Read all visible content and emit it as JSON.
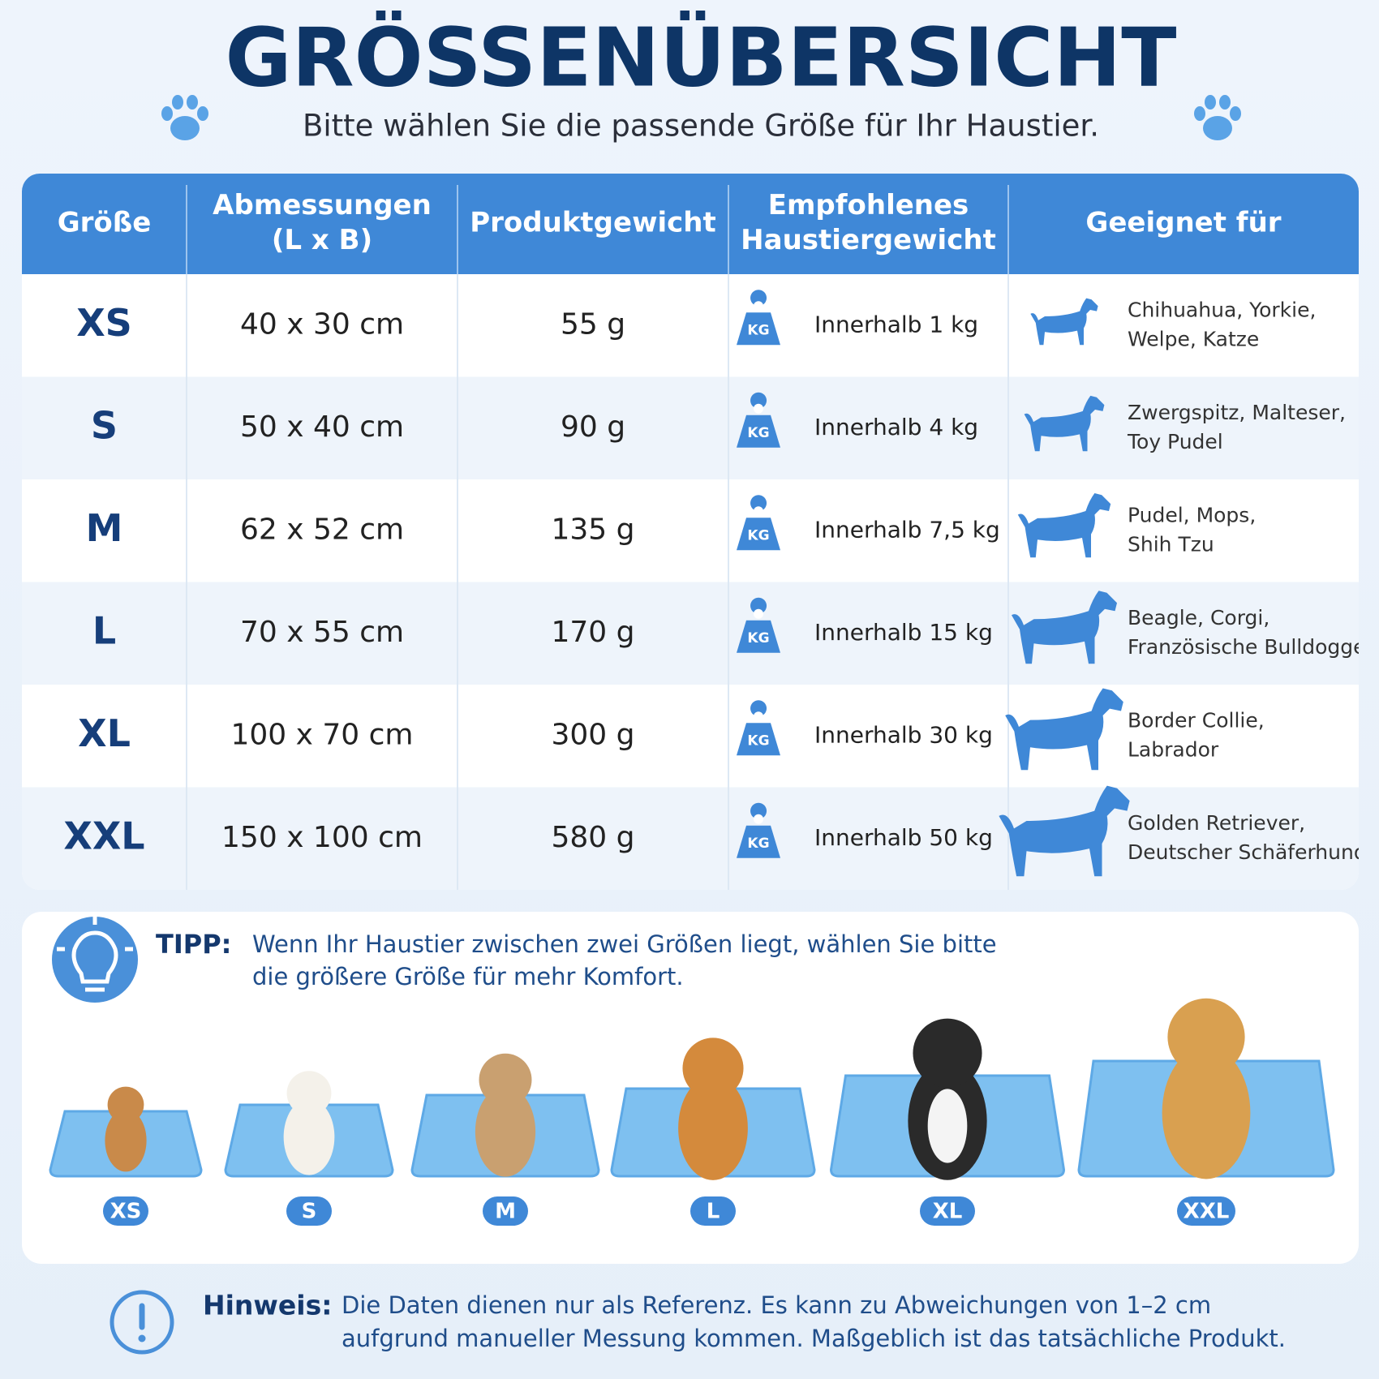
{
  "header": {
    "title": "GRÖSSENÜBERSICHT",
    "subtitle": "Bitte wählen Sie die passende Größe für Ihr Haustier."
  },
  "table": {
    "headers": [
      [
        "Größe"
      ],
      [
        "Abmessungen",
        "(L x B)"
      ],
      [
        "Produktgewicht"
      ],
      [
        "Empfohlenes",
        "Haustiergewicht"
      ],
      [
        "Geeignet für"
      ]
    ],
    "rows": [
      [
        "XS",
        "40 x 30 cm",
        "55 g",
        "Innerhalb 1 kg",
        [
          "Chihuahua, Yorkie,",
          "Welpe, Katze"
        ]
      ],
      [
        "S",
        "50 x 40 cm",
        "90 g",
        "Innerhalb 4 kg",
        [
          "Zwergspitz, Malteser,",
          "Toy Pudel"
        ]
      ],
      [
        "M",
        "62 x 52 cm",
        "135 g",
        "Innerhalb 7,5 kg",
        [
          "Pudel, Mops,",
          "Shih Tzu"
        ]
      ],
      [
        "L",
        "70 x 55 cm",
        "170 g",
        "Innerhalb 15 kg",
        [
          "Beagle, Corgi,",
          "Französische Bulldogge"
        ]
      ],
      [
        "XL",
        "100 x 70 cm",
        "300 g",
        "Innerhalb 30 kg",
        [
          "Border Collie,",
          "Labrador"
        ]
      ],
      [
        "XXL",
        "150 x 100 cm",
        "580 g",
        "Innerhalb 50 kg",
        [
          "Golden Retriever,",
          "Deutscher Schäferhund"
        ]
      ]
    ],
    "icon_label": "KG"
  },
  "tip": {
    "label": "TIPP:",
    "text": [
      "Wenn Ihr Haustier zwischen zwei Größen liegt, wählen Sie bitte",
      "die größere Größe für mehr Komfort."
    ]
  },
  "note": {
    "label": "Hinweis:",
    "text": [
      "Die Daten dienen nur als Referenz. Es kann zu Abweichungen von 1–2 cm",
      "aufgrund manueller Messung kommen. Maßgeblich ist das tatsächliche Produkt."
    ]
  }
}
